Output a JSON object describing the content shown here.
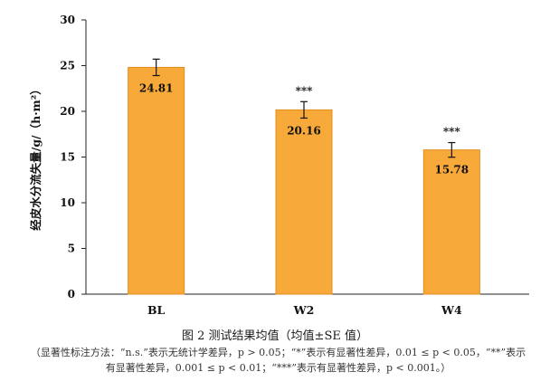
{
  "chart_data": {
    "type": "bar",
    "categories": [
      "BL",
      "W2",
      "W4"
    ],
    "values": [
      24.81,
      20.16,
      15.78
    ],
    "errors": [
      0.9,
      0.9,
      0.8
    ],
    "value_labels": [
      "24.81",
      "20.16",
      "15.78"
    ],
    "significance": [
      "",
      "***",
      "***"
    ],
    "ylabel": "经皮水分流失量/g/（h·m²）",
    "ylim": [
      0,
      30
    ],
    "yticks": [
      0,
      5,
      10,
      15,
      20,
      25,
      30
    ],
    "grid": false,
    "bar_color": "#F7A93A",
    "bar_edge_color": "#E08F1C"
  },
  "caption": {
    "title": "图 2   测试结果均值（均值±SE 值）",
    "note_line1": "（显著性标注方法：“n.s.”表示无统计学差异，p > 0.05；“*”表示有显著性差异，0.01 ≤ p < 0.05，“**”表示",
    "note_line2": "有显著性差异，0.001 ≤ p < 0.01；“***”表示有显著性差异，p < 0.001。）"
  }
}
